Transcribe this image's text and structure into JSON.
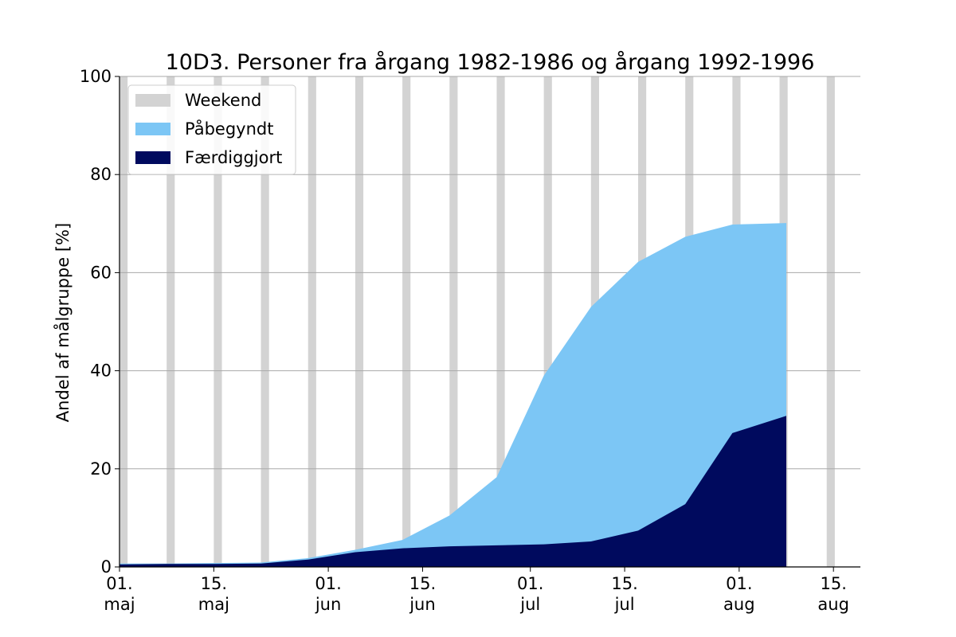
{
  "chart_data": {
    "type": "area",
    "title": "10D3. Personer fra årgang 1982-1986 og årgang 1992-1996",
    "ylabel": "Andel af målgruppe [%]",
    "xlabel": "",
    "ylim": [
      0,
      100
    ],
    "yticks": [
      0,
      20,
      40,
      60,
      80,
      100
    ],
    "xlim": [
      "2020-05-01",
      "2020-08-19"
    ],
    "xticks": [
      {
        "date": "2020-05-01",
        "line1": "01.",
        "line2": "maj"
      },
      {
        "date": "2020-05-15",
        "line1": "15.",
        "line2": "maj"
      },
      {
        "date": "2020-06-01",
        "line1": "01.",
        "line2": "jun"
      },
      {
        "date": "2020-06-15",
        "line1": "15.",
        "line2": "jun"
      },
      {
        "date": "2020-07-01",
        "line1": "01.",
        "line2": "jul"
      },
      {
        "date": "2020-07-15",
        "line1": "15.",
        "line2": "jul"
      },
      {
        "date": "2020-08-01",
        "line1": "01.",
        "line2": "aug"
      },
      {
        "date": "2020-08-15",
        "line1": "15.",
        "line2": "aug"
      }
    ],
    "grid": "horizontal",
    "legend_position": "top-left",
    "weekends": [
      "2020-05-01",
      "2020-05-08",
      "2020-05-15",
      "2020-05-22",
      "2020-05-29",
      "2020-06-05",
      "2020-06-12",
      "2020-06-19",
      "2020-06-26",
      "2020-07-03",
      "2020-07-10",
      "2020-07-17",
      "2020-07-24",
      "2020-07-31",
      "2020-08-07",
      "2020-08-14"
    ],
    "series": [
      {
        "name": "Påbegyndt",
        "color": "#7cc6f5",
        "x": [
          "2020-05-01",
          "2020-05-08",
          "2020-05-15",
          "2020-05-22",
          "2020-05-29",
          "2020-06-05",
          "2020-06-12",
          "2020-06-19",
          "2020-06-26",
          "2020-07-03",
          "2020-07-10",
          "2020-07-17",
          "2020-07-24",
          "2020-07-31",
          "2020-08-08"
        ],
        "values": [
          0.7,
          0.7,
          0.8,
          0.9,
          1.8,
          3.5,
          5.5,
          10.5,
          18.3,
          39.0,
          53.0,
          62.2,
          67.3,
          69.8,
          70.1
        ]
      },
      {
        "name": "Færdiggjort",
        "color": "#000a5e",
        "x": [
          "2020-05-01",
          "2020-05-08",
          "2020-05-15",
          "2020-05-22",
          "2020-05-29",
          "2020-06-05",
          "2020-06-12",
          "2020-06-19",
          "2020-06-26",
          "2020-07-03",
          "2020-07-10",
          "2020-07-17",
          "2020-07-24",
          "2020-07-31",
          "2020-08-08"
        ],
        "values": [
          0.5,
          0.6,
          0.6,
          0.7,
          1.5,
          3.0,
          3.8,
          4.2,
          4.4,
          4.6,
          5.2,
          7.4,
          12.8,
          27.3,
          30.8
        ]
      }
    ],
    "legend": [
      {
        "label": "Weekend",
        "color": "#d3d3d3"
      },
      {
        "label": "Påbegyndt",
        "color": "#7cc6f5"
      },
      {
        "label": "Færdiggjort",
        "color": "#000a5e"
      }
    ]
  }
}
